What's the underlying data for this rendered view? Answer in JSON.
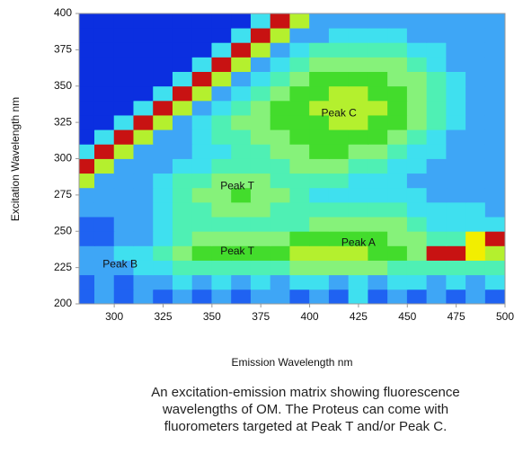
{
  "chart_data": {
    "type": "heatmap",
    "xlabel": "Emission Wavelength nm",
    "ylabel": "Excitation Wavelength nm",
    "xlim": [
      282,
      500
    ],
    "ylim": [
      200,
      400
    ],
    "xticks": [
      300,
      325,
      350,
      375,
      400,
      425,
      450,
      475,
      500
    ],
    "yticks": [
      200,
      225,
      250,
      275,
      300,
      325,
      350,
      375,
      400
    ],
    "x": [
      285,
      295,
      305,
      315,
      325,
      335,
      345,
      355,
      365,
      375,
      385,
      395,
      405,
      415,
      425,
      435,
      445,
      455,
      465,
      475,
      485,
      495
    ],
    "y": [
      205,
      215,
      225,
      235,
      245,
      255,
      265,
      275,
      285,
      295,
      305,
      315,
      325,
      335,
      345,
      355,
      365,
      375,
      385,
      395
    ],
    "z": [
      [
        1,
        2,
        1,
        2,
        1,
        2,
        1,
        2,
        1,
        2,
        2,
        1,
        2,
        1,
        3,
        1,
        2,
        1,
        2,
        1,
        2,
        1
      ],
      [
        1,
        2,
        1,
        2,
        2,
        3,
        2,
        3,
        2,
        3,
        2,
        3,
        3,
        2,
        3,
        2,
        3,
        3,
        2,
        3,
        2,
        3
      ],
      [
        2,
        2,
        2,
        3,
        3,
        4,
        4,
        4,
        4,
        4,
        4,
        5,
        5,
        5,
        5,
        5,
        4,
        4,
        4,
        4,
        4,
        4
      ],
      [
        2,
        2,
        3,
        3,
        4,
        5,
        6,
        6,
        6,
        6,
        6,
        7,
        7,
        7,
        7,
        6,
        6,
        5,
        10,
        10,
        8,
        7
      ],
      [
        1,
        1,
        2,
        2,
        3,
        4,
        5,
        5,
        5,
        5,
        5,
        6,
        6,
        6,
        6,
        6,
        5,
        5,
        4,
        4,
        8,
        10
      ],
      [
        1,
        1,
        2,
        2,
        3,
        4,
        4,
        4,
        4,
        4,
        4,
        4,
        5,
        5,
        5,
        5,
        5,
        4,
        3,
        3,
        3,
        3
      ],
      [
        2,
        2,
        2,
        2,
        3,
        4,
        4,
        5,
        5,
        5,
        4,
        4,
        4,
        4,
        4,
        4,
        4,
        3,
        3,
        3,
        3,
        2
      ],
      [
        2,
        2,
        2,
        2,
        3,
        4,
        5,
        5,
        6,
        5,
        5,
        4,
        3,
        3,
        3,
        3,
        3,
        3,
        2,
        2,
        2,
        2
      ],
      [
        7,
        2,
        2,
        2,
        3,
        4,
        4,
        5,
        5,
        5,
        4,
        4,
        4,
        4,
        3,
        3,
        3,
        2,
        2,
        2,
        2,
        2
      ],
      [
        10,
        7,
        2,
        2,
        2,
        3,
        3,
        4,
        4,
        4,
        4,
        5,
        5,
        5,
        4,
        4,
        3,
        3,
        2,
        2,
        2,
        2
      ],
      [
        3,
        10,
        7,
        2,
        2,
        2,
        3,
        3,
        4,
        4,
        5,
        5,
        6,
        6,
        5,
        5,
        4,
        3,
        3,
        2,
        2,
        2
      ],
      [
        0,
        3,
        10,
        7,
        2,
        2,
        3,
        4,
        4,
        5,
        5,
        6,
        6,
        6,
        6,
        6,
        5,
        4,
        3,
        2,
        2,
        2
      ],
      [
        0,
        0,
        3,
        10,
        7,
        2,
        3,
        4,
        5,
        5,
        6,
        6,
        6,
        7,
        7,
        6,
        6,
        5,
        4,
        3,
        2,
        2
      ],
      [
        0,
        0,
        0,
        3,
        10,
        7,
        2,
        3,
        4,
        5,
        6,
        6,
        7,
        7,
        7,
        7,
        6,
        5,
        4,
        3,
        2,
        2
      ],
      [
        0,
        0,
        0,
        0,
        3,
        10,
        7,
        2,
        3,
        4,
        5,
        6,
        6,
        7,
        7,
        6,
        6,
        5,
        4,
        3,
        2,
        2
      ],
      [
        0,
        0,
        0,
        0,
        0,
        3,
        10,
        7,
        2,
        3,
        4,
        5,
        6,
        6,
        6,
        6,
        5,
        5,
        4,
        3,
        2,
        2
      ],
      [
        0,
        0,
        0,
        0,
        0,
        0,
        3,
        10,
        7,
        2,
        3,
        4,
        5,
        5,
        5,
        5,
        5,
        4,
        3,
        2,
        2,
        2
      ],
      [
        0,
        0,
        0,
        0,
        0,
        0,
        0,
        3,
        10,
        7,
        2,
        3,
        4,
        4,
        4,
        4,
        4,
        3,
        3,
        2,
        2,
        2
      ],
      [
        0,
        0,
        0,
        0,
        0,
        0,
        0,
        0,
        3,
        10,
        7,
        2,
        2,
        3,
        3,
        3,
        3,
        2,
        2,
        2,
        2,
        2
      ],
      [
        0,
        0,
        0,
        0,
        0,
        0,
        0,
        0,
        0,
        3,
        10,
        7,
        2,
        2,
        2,
        2,
        2,
        2,
        2,
        2,
        2,
        2
      ]
    ],
    "colorscale": [
      "#0b2fe0",
      "#1f62f2",
      "#3ea6f6",
      "#3fe0ef",
      "#4ff0b4",
      "#86f27a",
      "#43dc2c",
      "#b4f02e",
      "#f2ee00",
      "#f48a00",
      "#c81212"
    ],
    "annotations": [
      {
        "text": "Peak C",
        "x": 415,
        "y": 331
      },
      {
        "text": "Peak T",
        "x": 363,
        "y": 281
      },
      {
        "text": "Peak T",
        "x": 363,
        "y": 236
      },
      {
        "text": "Peak A",
        "x": 425,
        "y": 242
      },
      {
        "text": "Peak B",
        "x": 303,
        "y": 227
      }
    ],
    "caption": [
      "An excitation-emission matrix showing fluorescence",
      "wavelengths of OM. The Proteus can come with",
      "fluorometers targeted at Peak T and/or Peak C."
    ]
  }
}
